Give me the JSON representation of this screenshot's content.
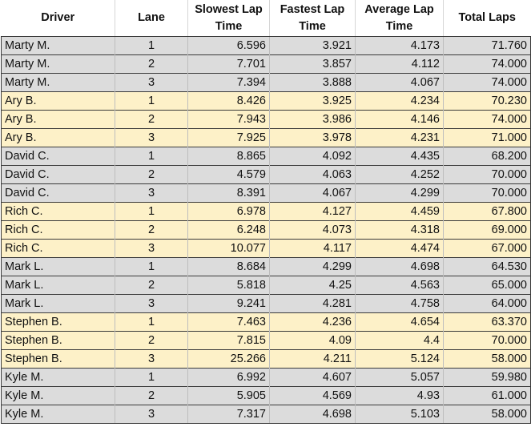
{
  "colors": {
    "group_a_row_bg": "#dcdcdc",
    "group_b_row_bg": "#fdf1c8",
    "grid_line": "#3a3a3a"
  },
  "table": {
    "headers": {
      "driver": "Driver",
      "lane": "Lane",
      "slowest": "Slowest Lap Time",
      "fastest": "Fastest Lap Time",
      "average": "Average Lap Time",
      "total": "Total Laps"
    },
    "rows": [
      {
        "driver": "Marty M.",
        "lane": "1",
        "slowest": "6.596",
        "fastest": "3.921",
        "average": "4.173",
        "total": "71.760",
        "group": 0
      },
      {
        "driver": "Marty M.",
        "lane": "2",
        "slowest": "7.701",
        "fastest": "3.857",
        "average": "4.112",
        "total": "74.000",
        "group": 0
      },
      {
        "driver": "Marty M.",
        "lane": "3",
        "slowest": "7.394",
        "fastest": "3.888",
        "average": "4.067",
        "total": "74.000",
        "group": 0
      },
      {
        "driver": "Ary B.",
        "lane": "1",
        "slowest": "8.426",
        "fastest": "3.925",
        "average": "4.234",
        "total": "70.230",
        "group": 1
      },
      {
        "driver": "Ary B.",
        "lane": "2",
        "slowest": "7.943",
        "fastest": "3.986",
        "average": "4.146",
        "total": "74.000",
        "group": 1
      },
      {
        "driver": "Ary B.",
        "lane": "3",
        "slowest": "7.925",
        "fastest": "3.978",
        "average": "4.231",
        "total": "71.000",
        "group": 1
      },
      {
        "driver": "David C.",
        "lane": "1",
        "slowest": "8.865",
        "fastest": "4.092",
        "average": "4.435",
        "total": "68.200",
        "group": 0
      },
      {
        "driver": "David C.",
        "lane": "2",
        "slowest": "4.579",
        "fastest": "4.063",
        "average": "4.252",
        "total": "70.000",
        "group": 0
      },
      {
        "driver": "David C.",
        "lane": "3",
        "slowest": "8.391",
        "fastest": "4.067",
        "average": "4.299",
        "total": "70.000",
        "group": 0
      },
      {
        "driver": "Rich C.",
        "lane": "1",
        "slowest": "6.978",
        "fastest": "4.127",
        "average": "4.459",
        "total": "67.800",
        "group": 1
      },
      {
        "driver": "Rich C.",
        "lane": "2",
        "slowest": "6.248",
        "fastest": "4.073",
        "average": "4.318",
        "total": "69.000",
        "group": 1
      },
      {
        "driver": "Rich C.",
        "lane": "3",
        "slowest": "10.077",
        "fastest": "4.117",
        "average": "4.474",
        "total": "67.000",
        "group": 1
      },
      {
        "driver": "Mark L.",
        "lane": "1",
        "slowest": "8.684",
        "fastest": "4.299",
        "average": "4.698",
        "total": "64.530",
        "group": 0
      },
      {
        "driver": "Mark L.",
        "lane": "2",
        "slowest": "5.818",
        "fastest": "4.25",
        "average": "4.563",
        "total": "65.000",
        "group": 0
      },
      {
        "driver": "Mark L.",
        "lane": "3",
        "slowest": "9.241",
        "fastest": "4.281",
        "average": "4.758",
        "total": "64.000",
        "group": 0
      },
      {
        "driver": "Stephen B.",
        "lane": "1",
        "slowest": "7.463",
        "fastest": "4.236",
        "average": "4.654",
        "total": "63.370",
        "group": 1
      },
      {
        "driver": "Stephen B.",
        "lane": "2",
        "slowest": "7.815",
        "fastest": "4.09",
        "average": "4.4",
        "total": "70.000",
        "group": 1
      },
      {
        "driver": "Stephen B.",
        "lane": "3",
        "slowest": "25.266",
        "fastest": "4.211",
        "average": "5.124",
        "total": "58.000",
        "group": 1
      },
      {
        "driver": "Kyle M.",
        "lane": "1",
        "slowest": "6.992",
        "fastest": "4.607",
        "average": "5.057",
        "total": "59.980",
        "group": 0
      },
      {
        "driver": "Kyle M.",
        "lane": "2",
        "slowest": "5.905",
        "fastest": "4.569",
        "average": "4.93",
        "total": "61.000",
        "group": 0
      },
      {
        "driver": "Kyle M.",
        "lane": "3",
        "slowest": "7.317",
        "fastest": "4.698",
        "average": "5.103",
        "total": "58.000",
        "group": 0
      }
    ]
  }
}
